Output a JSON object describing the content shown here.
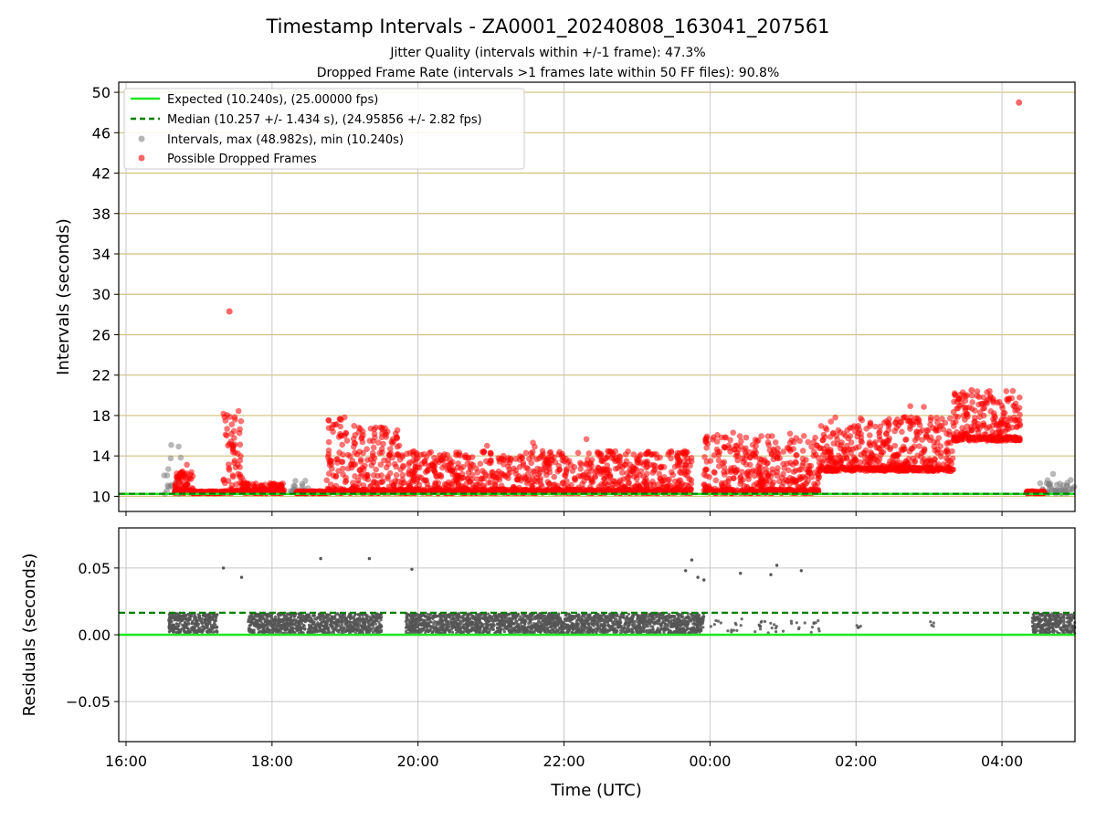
{
  "title": "Timestamp Intervals - ZA0001_20240808_163041_207561",
  "subtitle_1": "Jitter Quality (intervals within +/-1 frame): 47.3%",
  "subtitle_2": "Dropped Frame Rate (intervals >1 frames late within 50 FF files): 90.8%",
  "colors": {
    "expected": "#1ee81e",
    "median": "#008000",
    "intervals": "#808080",
    "dropped": "#ff0000",
    "hgrid_top": "#d2bf7a",
    "grid": "#c8c8c8"
  },
  "chart_data": [
    {
      "type": "scatter",
      "panel": "top",
      "ylabel": "Intervals (seconds)",
      "xlabel": "",
      "x_range_hours": [
        15.9,
        29.0
      ],
      "ylim": [
        8.5,
        51
      ],
      "yticks": [
        "10",
        "14",
        "18",
        "22",
        "26",
        "30",
        "34",
        "38",
        "42",
        "46",
        "50"
      ],
      "xtick_labels": [
        "16:00",
        "18:00",
        "20:00",
        "22:00",
        "00:00",
        "02:00",
        "04:00"
      ],
      "grid": "on",
      "legend_position": "upper-left",
      "legend": [
        {
          "key": "expected",
          "label": "Expected (10.240s), (25.00000 fps)"
        },
        {
          "key": "median",
          "label": "Median (10.257 +/- 1.434 s), (24.95856 +/- 2.82 fps)"
        },
        {
          "key": "intervals",
          "label": "Intervals, max (48.982s), min (10.240s)"
        },
        {
          "key": "dropped",
          "label": "Possible Dropped Frames"
        }
      ],
      "expected_value": 10.24,
      "median_value": 10.257,
      "max_interval": 48.982,
      "min_interval": 10.24,
      "notable_points": [
        {
          "time": "17:25",
          "value": 28.3
        },
        {
          "time": "04:14",
          "value": 48.98
        },
        {
          "time": "03:35",
          "value": 20.5
        }
      ],
      "series": [
        {
          "name": "Intervals, max (48.982s), min (10.240s)",
          "key": "intervals",
          "segments": [
            {
              "start": "16:30",
              "end": "16:45",
              "base": 10.24,
              "spread": [
                0,
                6
              ]
            },
            {
              "start": "18:15",
              "end": "18:30",
              "base": 10.24,
              "spread": [
                0,
                1.3
              ]
            },
            {
              "start": "04:30",
              "end": "05:00",
              "base": 10.24,
              "spread": [
                0,
                1.4
              ]
            }
          ]
        },
        {
          "name": "Possible Dropped Frames",
          "key": "dropped",
          "segments": [
            {
              "start": "16:40",
              "end": "16:55",
              "base": 10.3,
              "spread": [
                0,
                2.5
              ],
              "envelope": 12.5
            },
            {
              "start": "16:55",
              "end": "17:20",
              "base": 10.3,
              "spread": [
                0,
                0.2
              ]
            },
            {
              "start": "17:20",
              "end": "17:35",
              "base": 10.3,
              "spread": [
                0,
                8
              ],
              "envelope": 18.5
            },
            {
              "start": "17:35",
              "end": "18:10",
              "base": 10.3,
              "spread": [
                0,
                1
              ]
            },
            {
              "start": "18:20",
              "end": "18:45",
              "base": 10.3,
              "spread": [
                0,
                0.2
              ]
            },
            {
              "start": "18:45",
              "end": "19:00",
              "base": 10.3,
              "spread": [
                0,
                8
              ],
              "envelope": 18
            },
            {
              "start": "19:00",
              "end": "19:45",
              "base": 10.3,
              "spread": [
                0,
                7.5
              ],
              "envelope": 17
            },
            {
              "start": "19:45",
              "end": "23:45",
              "base": 10.3,
              "spread": [
                0,
                4.5
              ],
              "envelope": 14.5
            },
            {
              "start": "23:55",
              "end": "01:30",
              "base": 10.3,
              "spread": [
                0,
                7.5
              ],
              "envelope": 16
            },
            {
              "start": "01:30",
              "end": "02:00",
              "base": 12.5,
              "spread": [
                0,
                7
              ],
              "envelope": 17
            },
            {
              "start": "02:00",
              "end": "03:20",
              "base": 12.5,
              "spread": [
                0,
                6
              ],
              "envelope": 18
            },
            {
              "start": "03:20",
              "end": "04:15",
              "base": 15.5,
              "spread": [
                0,
                5.5
              ],
              "envelope": 20.5
            },
            {
              "start": "04:20",
              "end": "04:35",
              "base": 10.3,
              "spread": [
                0,
                0.2
              ]
            }
          ]
        }
      ]
    },
    {
      "type": "scatter",
      "panel": "bottom",
      "ylabel": "Residuals (seconds)",
      "xlabel": "Time (UTC)",
      "ylim": [
        -0.08,
        0.08
      ],
      "yticks": [
        "−0.05",
        "0.00",
        "0.05"
      ],
      "ytick_values": [
        -0.05,
        0.0,
        0.05
      ],
      "xtick_labels": [
        "16:00",
        "18:00",
        "20:00",
        "22:00",
        "00:00",
        "02:00",
        "04:00"
      ],
      "grid": "on",
      "expected_value": 0.0,
      "median_value": 0.0165,
      "outliers": [
        {
          "time": "17:20",
          "value": 0.05
        },
        {
          "time": "17:35",
          "value": 0.043
        },
        {
          "time": "18:40",
          "value": 0.057
        },
        {
          "time": "19:20",
          "value": 0.057
        },
        {
          "time": "19:55",
          "value": 0.049
        },
        {
          "time": "23:40",
          "value": 0.048
        },
        {
          "time": "23:45",
          "value": 0.056
        },
        {
          "time": "23:50",
          "value": 0.043
        },
        {
          "time": "23:55",
          "value": 0.041
        },
        {
          "time": "00:25",
          "value": 0.046
        },
        {
          "time": "00:50",
          "value": 0.045
        },
        {
          "time": "00:55",
          "value": 0.052
        },
        {
          "time": "01:15",
          "value": 0.048
        }
      ],
      "series": [
        {
          "name": "",
          "key": "intervals",
          "segments": [
            {
              "start": "16:35",
              "end": "17:15",
              "base": 0.0,
              "spread": [
                0.001,
                0.016
              ]
            },
            {
              "start": "17:40",
              "end": "19:00",
              "base": 0.0,
              "spread": [
                0.001,
                0.016
              ]
            },
            {
              "start": "19:00",
              "end": "19:30",
              "base": 0.0,
              "spread": [
                0.001,
                0.016
              ]
            },
            {
              "start": "19:50",
              "end": "23:55",
              "base": 0.0,
              "spread": [
                0.001,
                0.016
              ]
            },
            {
              "start": "00:00",
              "end": "01:30",
              "base": 0.0,
              "spread": [
                0.001,
                0.012
              ],
              "sparse": true
            },
            {
              "start": "02:00",
              "end": "02:05",
              "base": 0.0,
              "spread": [
                0.001,
                0.01
              ],
              "sparse": true
            },
            {
              "start": "03:00",
              "end": "03:05",
              "base": 0.0,
              "spread": [
                0.001,
                0.01
              ],
              "sparse": true
            },
            {
              "start": "04:25",
              "end": "05:00",
              "base": 0.0,
              "spread": [
                0.001,
                0.016
              ]
            }
          ]
        }
      ]
    }
  ]
}
